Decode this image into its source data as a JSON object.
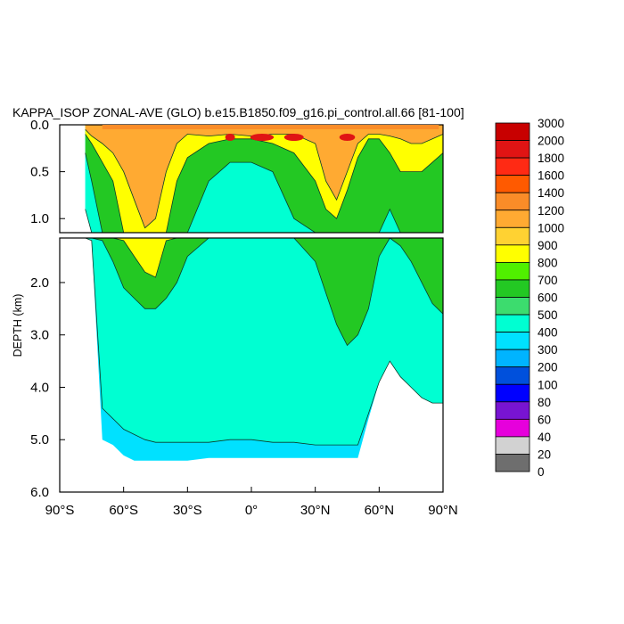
{
  "chart_data": {
    "type": "heatmap",
    "title": "KAPPA_ISOP ZONAL-AVE (GLO) b.e15.B1850.f09_g16.pi_control.all.66 [81-100]",
    "ylabel": "DEPTH (km)",
    "xlabel": "",
    "xlim": [
      -90,
      90
    ],
    "ylim": [
      0,
      6
    ],
    "x_ticks": [
      "90°S",
      "60°S",
      "30°S",
      "0°",
      "30°N",
      "60°N",
      "90°N"
    ],
    "y_ticks_upper": [
      "0.0",
      "0.5",
      "1.0"
    ],
    "y_ticks_lower": [
      "2.0",
      "3.0",
      "4.0",
      "5.0",
      "6.0"
    ],
    "colorbar": {
      "levels": [
        "3000",
        "2000",
        "1800",
        "1600",
        "1400",
        "1200",
        "1000",
        "900",
        "800",
        "700",
        "600",
        "500",
        "400",
        "300",
        "200",
        "100",
        "80",
        "60",
        "40",
        "20",
        "0"
      ],
      "colors": [
        "#c80000",
        "#e01414",
        "#ff2a14",
        "#ff5a00",
        "#fa8c28",
        "#ffaa32",
        "#ffd232",
        "#ffff00",
        "#50f000",
        "#23c823",
        "#3cdc6e",
        "#00ffd2",
        "#00e1ff",
        "#00b4ff",
        "#0050dc",
        "#0000ff",
        "#7814d2",
        "#e600dc",
        "#d2d2d2",
        "#6e6e6e"
      ]
    },
    "profile": {
      "lat": [
        -78,
        -75,
        -70,
        -65,
        -60,
        -55,
        -50,
        -45,
        -40,
        -35,
        -30,
        -20,
        -10,
        0,
        10,
        20,
        30,
        35,
        40,
        45,
        50,
        55,
        60,
        65,
        70,
        75,
        80,
        85,
        90
      ],
      "bottom_depth": [
        0.9,
        1.2,
        5.0,
        5.1,
        5.3,
        5.4,
        5.4,
        5.4,
        5.4,
        5.4,
        5.4,
        5.35,
        5.35,
        5.35,
        5.35,
        5.35,
        5.35,
        5.35,
        5.35,
        5.35,
        5.35,
        4.6,
        3.9,
        3.5,
        3.8,
        4.0,
        4.2,
        4.3,
        4.3
      ],
      "d1000": [
        0.05,
        0.12,
        0.2,
        0.3,
        0.5,
        0.8,
        1.1,
        1.0,
        0.5,
        0.2,
        0.1,
        0.12,
        0.1,
        0.12,
        0.1,
        0.1,
        0.2,
        0.6,
        0.8,
        0.5,
        0.2,
        0.1,
        0.1,
        0.12,
        0.15,
        0.2,
        0.2,
        0.15,
        0.1
      ],
      "d800": [
        0.1,
        0.2,
        0.4,
        0.6,
        1.2,
        1.5,
        1.8,
        1.9,
        1.2,
        0.6,
        0.35,
        0.2,
        0.15,
        0.15,
        0.2,
        0.3,
        0.6,
        0.9,
        1.0,
        0.7,
        0.35,
        0.15,
        0.15,
        0.3,
        0.5,
        0.5,
        0.5,
        0.4,
        0.3
      ],
      "d600": [
        0.3,
        0.6,
        1.2,
        1.6,
        2.1,
        2.3,
        2.5,
        2.5,
        2.3,
        2.0,
        1.5,
        0.6,
        0.4,
        0.4,
        0.5,
        1.0,
        1.6,
        2.2,
        2.8,
        3.2,
        3.0,
        2.5,
        1.5,
        0.9,
        1.3,
        1.6,
        2.0,
        2.4,
        2.6
      ],
      "d400": [
        0.9,
        1.2,
        4.4,
        4.6,
        4.8,
        4.9,
        5.0,
        5.05,
        5.05,
        5.05,
        5.05,
        5.05,
        5.0,
        5.0,
        5.05,
        5.05,
        5.1,
        5.1,
        5.1,
        5.1,
        5.1,
        4.5,
        3.9,
        3.5,
        3.8,
        4.0,
        4.2,
        4.3,
        4.3
      ]
    }
  }
}
